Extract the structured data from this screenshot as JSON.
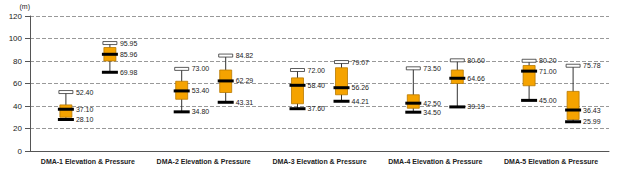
{
  "chart_data": {
    "type": "boxplot",
    "ylabel": "(m)",
    "categories": [
      "DMA-1 Elevation & Pressure",
      "DMA-2 Elevation & Pressure",
      "DMA-3 Elevation & Pressure",
      "DMA-4 Elevation & Pressure",
      "DMA-5 Elevation & Pressure"
    ],
    "ylim": [
      0,
      120
    ],
    "yticks": [
      0,
      20,
      40,
      60,
      80,
      100,
      120
    ],
    "grid": true,
    "data_labels": true,
    "series": [
      {
        "color": "#f5a300",
        "values": [
          [
            28.1,
            30,
            37.1,
            41,
            52.4
          ],
          [
            34.8,
            46,
            53.4,
            62,
            73
          ],
          [
            37.6,
            42,
            58.4,
            65,
            72
          ],
          [
            34.5,
            38,
            42.5,
            50,
            73.5
          ],
          [
            45,
            58,
            71,
            76,
            80.2
          ]
        ],
        "value_labels": [
          [
            "52.40",
            "37.10",
            "28.10"
          ],
          [
            "73.00",
            "53.40",
            "34.80"
          ],
          [
            "72.00",
            "58.40",
            "37.60"
          ],
          [
            "73.50",
            "42.50",
            "34.50"
          ],
          [
            "80.20",
            "71.00",
            "45.00"
          ]
        ]
      },
      {
        "color": "#f5a300",
        "values": [
          [
            69.98,
            80,
            85.96,
            92,
            95.95
          ],
          [
            43.31,
            52,
            62.29,
            72,
            84.82
          ],
          [
            44.21,
            50,
            56.26,
            74,
            79.07
          ],
          [
            39.19,
            60,
            64.66,
            72,
            80.6
          ],
          [
            25.99,
            28,
            36.43,
            53,
            75.78
          ]
        ],
        "value_labels": [
          [
            "95.95",
            "85.96",
            "69.98"
          ],
          [
            "84.82",
            "62.29",
            "43.31"
          ],
          [
            "79.07",
            "56.26",
            "44.21"
          ],
          [
            "80.60",
            "64.66",
            "39.19"
          ],
          [
            "75.78",
            "36.43",
            "25.99"
          ]
        ]
      }
    ]
  }
}
